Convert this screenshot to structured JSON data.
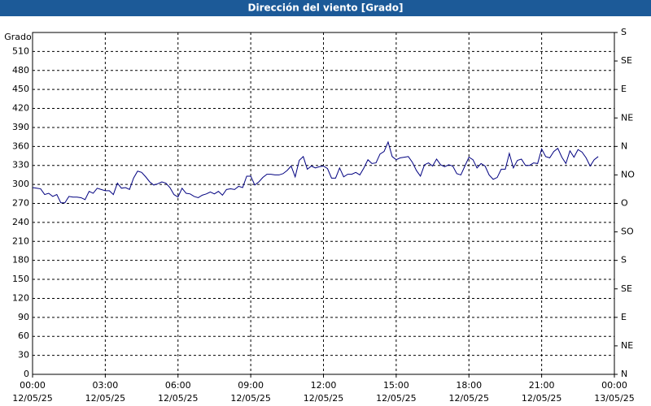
{
  "chart_data": {
    "type": "line",
    "title": "Dirección del viento [Grado]",
    "y_label": "Grado",
    "x": [
      0,
      10,
      20,
      30,
      40,
      50,
      60,
      70,
      80,
      90,
      100,
      110,
      120,
      130,
      140,
      150,
      160,
      170,
      180,
      190,
      200,
      210,
      220,
      230,
      240,
      250,
      260,
      270,
      280,
      290,
      300,
      310,
      320,
      330,
      340,
      350,
      360,
      370,
      380,
      390,
      400,
      410,
      420,
      430,
      440,
      450,
      460,
      470,
      480,
      490,
      500,
      510,
      520,
      530,
      540,
      550,
      560,
      570,
      580,
      590,
      600,
      610,
      620,
      630,
      640,
      650,
      660,
      670,
      680,
      690,
      700,
      710,
      720,
      730,
      740,
      750,
      760,
      770,
      780,
      790,
      800,
      810,
      820,
      830,
      840,
      850,
      860,
      870,
      880,
      890,
      900,
      910,
      920,
      930,
      940,
      950,
      960,
      970,
      980,
      990,
      1000,
      1010,
      1020,
      1030,
      1040,
      1050,
      1060,
      1070,
      1080,
      1090,
      1100,
      1110,
      1120,
      1130,
      1140,
      1150,
      1160,
      1170,
      1180,
      1190,
      1200,
      1210,
      1220,
      1230,
      1240,
      1250,
      1260,
      1270,
      1280,
      1290,
      1300,
      1310,
      1320,
      1330,
      1340,
      1350,
      1360,
      1370,
      1380,
      1390,
      1400
    ],
    "series": [
      {
        "color": "#000080",
        "values": [
          295,
          294,
          293,
          284,
          286,
          281,
          284,
          271,
          271,
          281,
          280,
          280,
          279,
          276,
          289,
          286,
          294,
          292,
          290,
          290,
          284,
          302,
          294,
          295,
          292,
          310,
          321,
          319,
          312,
          304,
          299,
          301,
          304,
          302,
          295,
          284,
          280,
          294,
          286,
          285,
          281,
          279,
          283,
          285,
          288,
          285,
          289,
          283,
          292,
          293,
          292,
          297,
          295,
          313,
          313,
          299,
          304,
          311,
          316,
          316,
          315,
          315,
          317,
          322,
          329,
          312,
          338,
          344,
          324,
          329,
          326,
          328,
          329,
          325,
          310,
          310,
          326,
          312,
          316,
          316,
          319,
          315,
          326,
          339,
          333,
          334,
          348,
          352,
          367,
          344,
          339,
          342,
          343,
          344,
          335,
          322,
          313,
          331,
          334,
          329,
          340,
          331,
          328,
          331,
          329,
          317,
          315,
          329,
          343,
          339,
          326,
          333,
          329,
          315,
          308,
          311,
          324,
          324,
          349,
          326,
          338,
          340,
          330,
          330,
          334,
          333,
          356,
          344,
          342,
          352,
          357,
          343,
          333,
          353,
          343,
          355,
          351,
          342,
          329,
          339,
          344
        ]
      }
    ],
    "xlim": [
      0,
      1440
    ],
    "xticks": [
      {
        "value": 0,
        "label": "00:00"
      },
      {
        "value": 180,
        "label": "03:00"
      },
      {
        "value": 360,
        "label": "06:00"
      },
      {
        "value": 540,
        "label": "09:00"
      },
      {
        "value": 720,
        "label": "12:00"
      },
      {
        "value": 900,
        "label": "15:00"
      },
      {
        "value": 1080,
        "label": "18:00"
      },
      {
        "value": 1260,
        "label": "21:00"
      },
      {
        "value": 1440,
        "label": "00:00"
      }
    ],
    "xtick_dates": [
      "12/05/25",
      "12/05/25",
      "12/05/25",
      "12/05/25",
      "12/05/25",
      "12/05/25",
      "12/05/25",
      "12/05/25",
      "13/05/25"
    ],
    "ylim": [
      0,
      540
    ],
    "yticks": [
      0,
      30,
      60,
      90,
      120,
      150,
      180,
      210,
      240,
      270,
      300,
      330,
      360,
      390,
      420,
      450,
      480,
      510
    ],
    "y2lim": [
      0,
      540
    ],
    "y2ticks": [
      {
        "value": 0,
        "label": "N"
      },
      {
        "value": 45,
        "label": "NE"
      },
      {
        "value": 90,
        "label": "E"
      },
      {
        "value": 135,
        "label": "SE"
      },
      {
        "value": 180,
        "label": "S"
      },
      {
        "value": 225,
        "label": "SO"
      },
      {
        "value": 270,
        "label": "O"
      },
      {
        "value": 315,
        "label": "NO"
      },
      {
        "value": 360,
        "label": "N"
      },
      {
        "value": 405,
        "label": "NE"
      },
      {
        "value": 450,
        "label": "E"
      },
      {
        "value": 495,
        "label": "SE"
      },
      {
        "value": 540,
        "label": "S"
      }
    ],
    "grid": true
  }
}
